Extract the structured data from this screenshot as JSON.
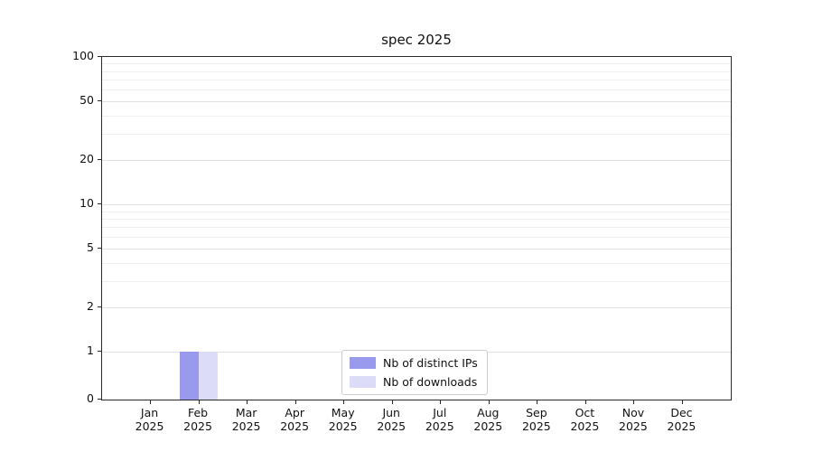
{
  "figure": {
    "background": "#ffffff"
  },
  "chart_data": {
    "type": "bar",
    "title": "spec 2025",
    "x_labels": [
      {
        "month": "Jan",
        "year": "2025"
      },
      {
        "month": "Feb",
        "year": "2025"
      },
      {
        "month": "Mar",
        "year": "2025"
      },
      {
        "month": "Apr",
        "year": "2025"
      },
      {
        "month": "May",
        "year": "2025"
      },
      {
        "month": "Jun",
        "year": "2025"
      },
      {
        "month": "Jul",
        "year": "2025"
      },
      {
        "month": "Aug",
        "year": "2025"
      },
      {
        "month": "Sep",
        "year": "2025"
      },
      {
        "month": "Oct",
        "year": "2025"
      },
      {
        "month": "Nov",
        "year": "2025"
      },
      {
        "month": "Dec",
        "year": "2025"
      }
    ],
    "series": [
      {
        "name": "Nb of distinct IPs",
        "color": "#9999ee",
        "values": [
          0,
          1,
          0,
          0,
          0,
          0,
          0,
          0,
          0,
          0,
          0,
          0
        ]
      },
      {
        "name": "Nb of downloads",
        "color": "#dcdcf8",
        "values": [
          0,
          1,
          0,
          0,
          0,
          0,
          0,
          0,
          0,
          0,
          0,
          0
        ]
      }
    ],
    "y_scale": "symlog",
    "ylim": [
      0,
      100
    ],
    "y_ticks": [
      0,
      1,
      2,
      5,
      10,
      20,
      50,
      100
    ],
    "y_minor_ticks": [
      3,
      4,
      6,
      7,
      8,
      9,
      30,
      40,
      60,
      70,
      80,
      90
    ],
    "grid": "horizontal",
    "legend_position": "lower-center-inside"
  }
}
